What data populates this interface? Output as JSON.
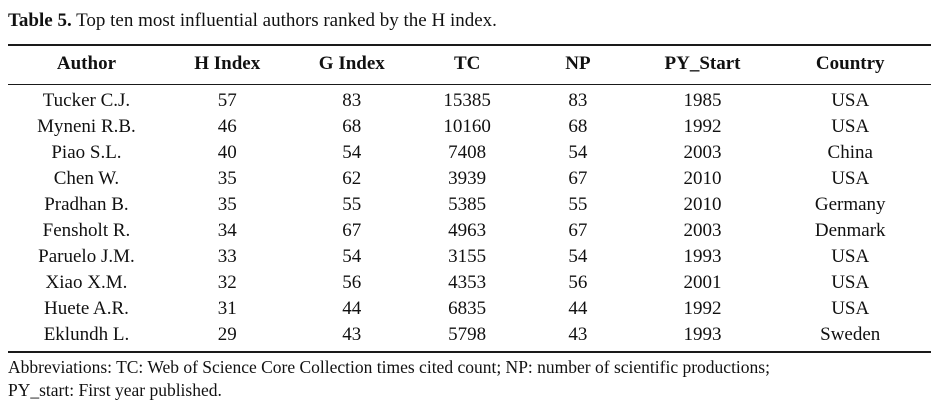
{
  "caption": {
    "label": "Table 5.",
    "text": " Top ten most influential authors ranked by the H index."
  },
  "table": {
    "columns": [
      "Author",
      "H Index",
      "G Index",
      "TC",
      "NP",
      "PY_Start",
      "Country"
    ],
    "rows": [
      [
        "Tucker C.J.",
        "57",
        "83",
        "15385",
        "83",
        "1985",
        "USA"
      ],
      [
        "Myneni R.B.",
        "46",
        "68",
        "10160",
        "68",
        "1992",
        "USA"
      ],
      [
        "Piao S.L.",
        "40",
        "54",
        "7408",
        "54",
        "2003",
        "China"
      ],
      [
        "Chen W.",
        "35",
        "62",
        "3939",
        "67",
        "2010",
        "USA"
      ],
      [
        "Pradhan B.",
        "35",
        "55",
        "5385",
        "55",
        "2010",
        "Germany"
      ],
      [
        "Fensholt R.",
        "34",
        "67",
        "4963",
        "67",
        "2003",
        "Denmark"
      ],
      [
        "Paruelo J.M.",
        "33",
        "54",
        "3155",
        "54",
        "1993",
        "USA"
      ],
      [
        "Xiao X.M.",
        "32",
        "56",
        "4353",
        "56",
        "2001",
        "USA"
      ],
      [
        "Huete A.R.",
        "31",
        "44",
        "6835",
        "44",
        "1992",
        "USA"
      ],
      [
        "Eklundh L.",
        "29",
        "43",
        "5798",
        "43",
        "1993",
        "Sweden"
      ]
    ]
  },
  "footnote": {
    "lines": [
      "Abbreviations: TC: Web of Science Core Collection times cited count; NP: number of scientific productions;",
      "PY_start: First year published."
    ]
  },
  "colors": {
    "text": "#111111",
    "rule": "#1a1a1a",
    "background": "#ffffff"
  }
}
